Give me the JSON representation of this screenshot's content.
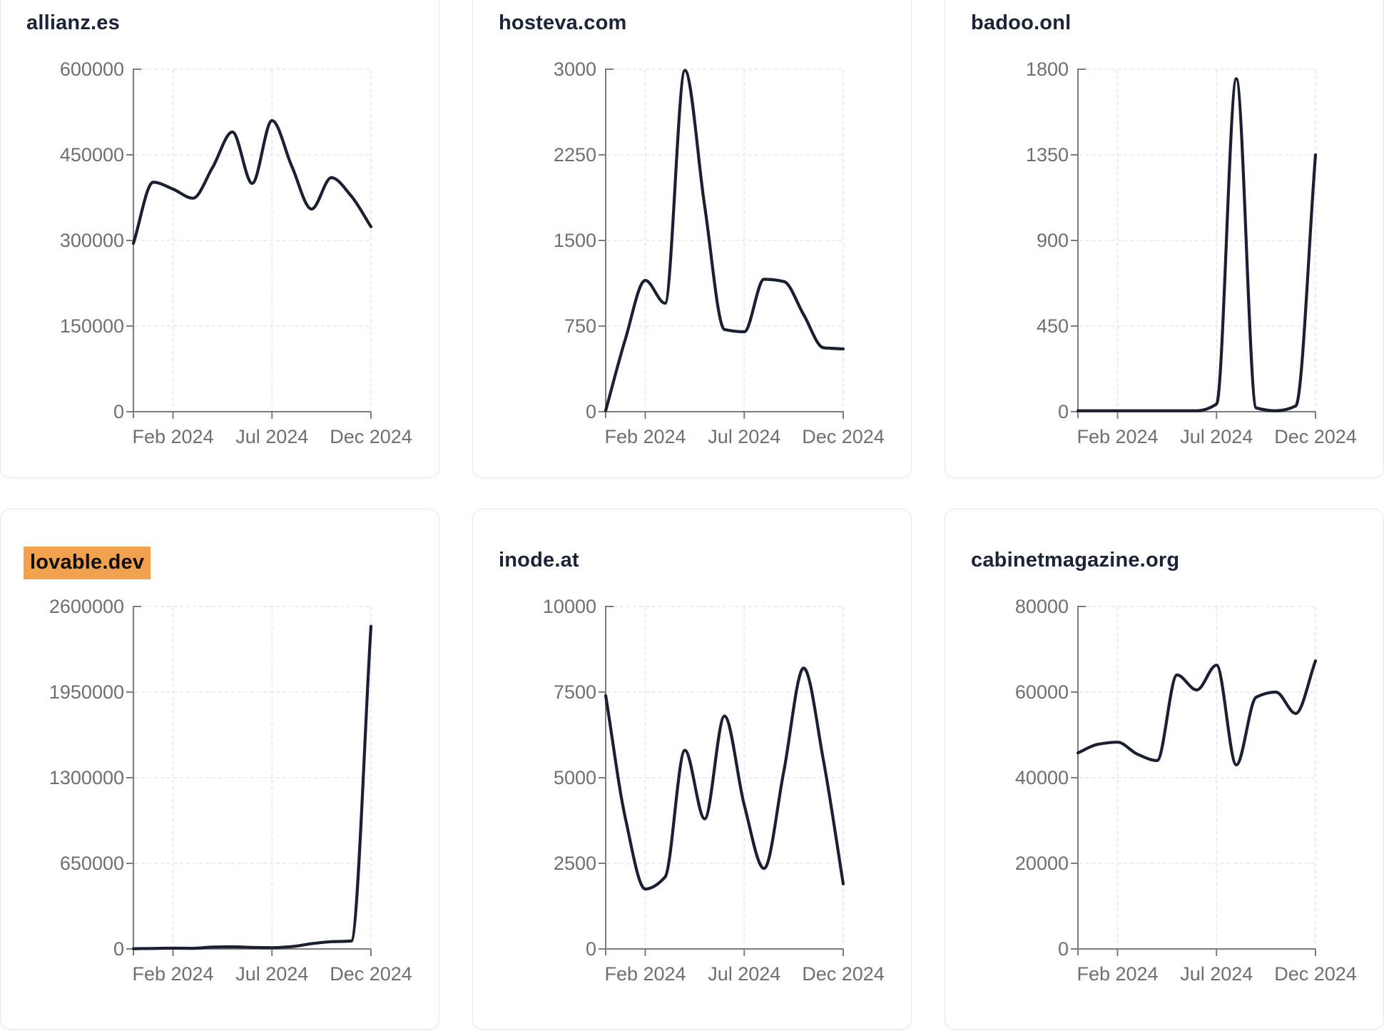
{
  "theme": {
    "background": "#ffffff",
    "card_border_color": "#e5e7ea",
    "title_color": "#1b2337",
    "highlight_color": "#f0a24e",
    "highlight_text_color": "#0f0f0f",
    "line_color": "#1a1f31",
    "axis_color": "#7d7d7d",
    "grid_color": "#e7e7e7",
    "tick_label_color": "#6f6f6f"
  },
  "chart_data": [
    {
      "type": "line",
      "title": "allianz.es",
      "title_highlighted": false,
      "months": [
        "Dec 2023",
        "Jan 2024",
        "Feb 2024",
        "Mar 2024",
        "Apr 2024",
        "May 2024",
        "Jun 2024",
        "Jul 2024",
        "Aug 2024",
        "Sep 2024",
        "Oct 2024",
        "Nov 2024",
        "Dec 2024"
      ],
      "values": [
        295000,
        402000,
        390000,
        374000,
        428000,
        490000,
        400000,
        510000,
        430000,
        355000,
        410000,
        378000,
        324000
      ],
      "ylim": [
        0,
        600000
      ],
      "yticks": [
        0,
        150000,
        300000,
        450000,
        600000
      ],
      "xticks": [
        {
          "label": "Feb 2024",
          "t": 0.1667
        },
        {
          "label": "Jul 2024",
          "t": 0.5833
        },
        {
          "label": "Dec 2024",
          "t": 1.0
        }
      ],
      "grid": true,
      "legend": "none"
    },
    {
      "type": "line",
      "title": "hosteva.com",
      "title_highlighted": false,
      "months": [
        "Dec 2023",
        "Jan 2024",
        "Feb 2024",
        "Mar 2024",
        "Apr 2024",
        "May 2024",
        "Jun 2024",
        "Jul 2024",
        "Aug 2024",
        "Sep 2024",
        "Oct 2024",
        "Nov 2024",
        "Dec 2024"
      ],
      "values": [
        10,
        640,
        1150,
        950,
        2990,
        1800,
        720,
        700,
        1160,
        1140,
        850,
        560,
        550
      ],
      "ylim": [
        0,
        3000
      ],
      "yticks": [
        0,
        750,
        1500,
        2250,
        3000
      ],
      "xticks": [
        {
          "label": "Feb 2024",
          "t": 0.1667
        },
        {
          "label": "Jul 2024",
          "t": 0.5833
        },
        {
          "label": "Dec 2024",
          "t": 1.0
        }
      ],
      "grid": true,
      "legend": "none"
    },
    {
      "type": "line",
      "title": "badoo.onl",
      "title_highlighted": false,
      "months": [
        "Dec 2023",
        "Jan 2024",
        "Feb 2024",
        "Mar 2024",
        "Apr 2024",
        "May 2024",
        "Jun 2024",
        "Jul 2024",
        "Aug 2024",
        "Sep 2024",
        "Oct 2024",
        "Nov 2024",
        "Dec 2024"
      ],
      "values": [
        5,
        5,
        5,
        5,
        5,
        5,
        5,
        40,
        1750,
        20,
        5,
        30,
        1350
      ],
      "ylim": [
        0,
        1800
      ],
      "yticks": [
        0,
        450,
        900,
        1350,
        1800
      ],
      "xticks": [
        {
          "label": "Feb 2024",
          "t": 0.1667
        },
        {
          "label": "Jul 2024",
          "t": 0.5833
        },
        {
          "label": "Dec 2024",
          "t": 1.0
        }
      ],
      "grid": true,
      "legend": "none"
    },
    {
      "type": "line",
      "title": "lovable.dev",
      "title_highlighted": true,
      "months": [
        "Dec 2023",
        "Jan 2024",
        "Feb 2024",
        "Mar 2024",
        "Apr 2024",
        "May 2024",
        "Jun 2024",
        "Jul 2024",
        "Aug 2024",
        "Sep 2024",
        "Oct 2024",
        "Nov 2024",
        "Dec 2024"
      ],
      "values": [
        2000,
        4000,
        6000,
        5000,
        14000,
        16000,
        12000,
        10000,
        18000,
        40000,
        55000,
        60000,
        2450000
      ],
      "ylim": [
        0,
        2600000
      ],
      "yticks": [
        0,
        650000,
        1300000,
        1950000,
        2600000
      ],
      "xticks": [
        {
          "label": "Feb 2024",
          "t": 0.1667
        },
        {
          "label": "Jul 2024",
          "t": 0.5833
        },
        {
          "label": "Dec 2024",
          "t": 1.0
        }
      ],
      "grid": true,
      "legend": "none"
    },
    {
      "type": "line",
      "title": "inode.at",
      "title_highlighted": false,
      "months": [
        "Dec 2023",
        "Jan 2024",
        "Feb 2024",
        "Mar 2024",
        "Apr 2024",
        "May 2024",
        "Jun 2024",
        "Jul 2024",
        "Aug 2024",
        "Sep 2024",
        "Oct 2024",
        "Nov 2024",
        "Dec 2024"
      ],
      "values": [
        7400,
        3800,
        1750,
        2100,
        5800,
        3800,
        6800,
        4200,
        2350,
        5200,
        8200,
        5500,
        1900
      ],
      "ylim": [
        0,
        10000
      ],
      "yticks": [
        0,
        2500,
        5000,
        7500,
        10000
      ],
      "xticks": [
        {
          "label": "Feb 2024",
          "t": 0.1667
        },
        {
          "label": "Jul 2024",
          "t": 0.5833
        },
        {
          "label": "Dec 2024",
          "t": 1.0
        }
      ],
      "grid": true,
      "legend": "none"
    },
    {
      "type": "line",
      "title": "cabinetmagazine.org",
      "title_highlighted": false,
      "months": [
        "Dec 2023",
        "Jan 2024",
        "Feb 2024",
        "Mar 2024",
        "Apr 2024",
        "May 2024",
        "Jun 2024",
        "Jul 2024",
        "Aug 2024",
        "Sep 2024",
        "Oct 2024",
        "Nov 2024",
        "Dec 2024"
      ],
      "values": [
        45800,
        47800,
        48300,
        45500,
        44000,
        64000,
        60500,
        66300,
        43000,
        58800,
        60000,
        55000,
        67300
      ],
      "ylim": [
        0,
        80000
      ],
      "yticks": [
        0,
        20000,
        40000,
        60000,
        80000
      ],
      "xticks": [
        {
          "label": "Feb 2024",
          "t": 0.1667
        },
        {
          "label": "Jul 2024",
          "t": 0.5833
        },
        {
          "label": "Dec 2024",
          "t": 1.0
        }
      ],
      "grid": true,
      "legend": "none"
    }
  ]
}
